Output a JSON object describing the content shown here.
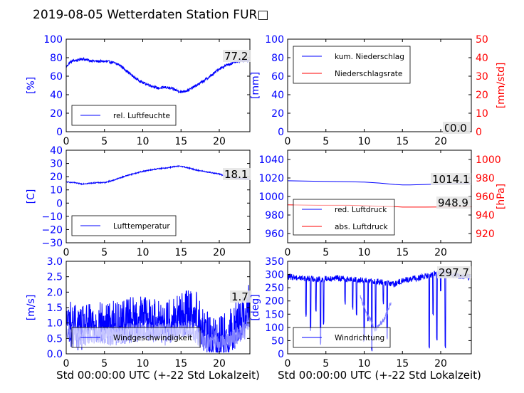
{
  "title": "2019-08-05 Wetterdaten Station FUR□",
  "colors": {
    "blue": "#0000ff",
    "red": "#ff0000",
    "light_blue": "#8080ff",
    "axes": "#000000"
  },
  "chart_data": [
    {
      "type": "line",
      "ylabel": "[%]",
      "xlim": [
        0,
        24
      ],
      "ylim": [
        0,
        100
      ],
      "xticks": [
        "0",
        "5",
        "10",
        "15",
        "20"
      ],
      "yticks": [
        "0",
        "20",
        "40",
        "60",
        "80",
        "100"
      ],
      "legend": {
        "placement": "bottom-left",
        "entries": [
          "rel. Luftfeuchte"
        ]
      },
      "last_value_label": "77.2",
      "series": [
        {
          "name": "rel. Luftfeuchte",
          "color": "#0000ff",
          "noise": 1.5,
          "x": [
            0,
            0.5,
            1,
            1.5,
            2,
            3,
            4,
            5,
            6,
            7,
            8,
            9,
            10,
            11,
            12,
            13,
            14,
            15,
            16,
            17,
            18,
            19,
            20,
            21,
            22,
            23,
            24
          ],
          "y": [
            70,
            75,
            77,
            77,
            79,
            77,
            76,
            76,
            75,
            72,
            65,
            58,
            53,
            50,
            47,
            48,
            46,
            43,
            45,
            50,
            55,
            61,
            68,
            72,
            75,
            77,
            77.2
          ]
        }
      ]
    },
    {
      "type": "line",
      "ylabel": "[mm]",
      "ylabel_right": "[mm/std]",
      "xlim": [
        0,
        24
      ],
      "ylim": [
        0,
        100
      ],
      "ylim_right": [
        0,
        50
      ],
      "xticks": [
        "0",
        "5",
        "10",
        "15",
        "20"
      ],
      "yticks": [
        "0",
        "20",
        "40",
        "60",
        "80",
        "100"
      ],
      "yticks_right": [
        "0",
        "10",
        "20",
        "30",
        "40",
        "50"
      ],
      "legend": {
        "placement": "top-left",
        "entries": [
          "kum. Niederschlag",
          "Niederschlagsrate"
        ]
      },
      "last_value_label": "0.0",
      "last_value_label_right": "0.0",
      "series": [
        {
          "name": "kum. Niederschlag",
          "color": "#0000ff",
          "x": [
            0,
            24
          ],
          "y": [
            0,
            0
          ]
        },
        {
          "name": "Niederschlagsrate",
          "color": "#ff0000",
          "x": [
            0,
            24
          ],
          "y": [
            0,
            0
          ],
          "axis": "right"
        }
      ]
    },
    {
      "type": "line",
      "ylabel": "[C]",
      "xlim": [
        0,
        24
      ],
      "ylim": [
        -30,
        40
      ],
      "xticks": [
        "0",
        "5",
        "10",
        "15",
        "20"
      ],
      "yticks": [
        "−30",
        "−20",
        "−10",
        "0",
        "10",
        "20",
        "30",
        "40"
      ],
      "legend": {
        "placement": "bottom-left",
        "entries": [
          "Lufttemperatur"
        ]
      },
      "last_value_label": "18.1",
      "series": [
        {
          "name": "Lufttemperatur",
          "color": "#0000ff",
          "noise": 0.4,
          "x": [
            0,
            1,
            2,
            3,
            4,
            5,
            6,
            7,
            8,
            9,
            10,
            11,
            12,
            13,
            14,
            15,
            16,
            17,
            18,
            19,
            20,
            21,
            22,
            23,
            24
          ],
          "y": [
            16,
            15.5,
            14.5,
            15,
            15.5,
            15.5,
            17,
            19,
            21,
            22.5,
            24,
            25,
            26,
            26.5,
            27.5,
            28,
            26.5,
            25,
            24,
            23,
            22,
            20,
            19,
            18.5,
            18.1
          ]
        }
      ]
    },
    {
      "type": "line",
      "ylabel_right": "[hPa]",
      "xlim": [
        0,
        24
      ],
      "ylim": [
        950,
        1050
      ],
      "ylim_right": [
        910,
        1010
      ],
      "xticks": [
        "0",
        "5",
        "10",
        "15",
        "20"
      ],
      "yticks": [
        "960",
        "980",
        "1000",
        "1020",
        "1040"
      ],
      "yticks_right": [
        "920",
        "940",
        "960",
        "980",
        "1000"
      ],
      "legend": {
        "placement": "bottom-left",
        "entries": [
          "red. Luftdruck",
          "abs. Luftdruck"
        ]
      },
      "last_value_label": "1014.1",
      "last_value_label_right": "948.9",
      "series": [
        {
          "name": "red. Luftdruck",
          "color": "#0000ff",
          "x": [
            0,
            4,
            8,
            10,
            12,
            14,
            15,
            16,
            18,
            20,
            22,
            24
          ],
          "y": [
            1017,
            1016.5,
            1016,
            1015.5,
            1014.5,
            1013,
            1012.5,
            1012.5,
            1013,
            1013.5,
            1014,
            1014.1
          ]
        },
        {
          "name": "abs. Luftdruck",
          "color": "#ff0000",
          "axis": "right",
          "x": [
            0,
            4,
            8,
            10,
            12,
            14,
            15,
            16,
            18,
            20,
            22,
            24
          ],
          "y": [
            951,
            950.5,
            950.5,
            950,
            949.5,
            949,
            948.5,
            948.5,
            948.5,
            948.7,
            948.8,
            948.9
          ]
        }
      ]
    },
    {
      "type": "line",
      "ylabel": "[m/s]",
      "xlabel": "Std 00:00:00 UTC (+-22 Std Lokalzeit)",
      "xlim": [
        0,
        24
      ],
      "ylim": [
        0,
        3
      ],
      "xticks": [
        "0",
        "5",
        "10",
        "15",
        "20"
      ],
      "yticks": [
        "0.0",
        "0.5",
        "1.0",
        "1.5",
        "2.0",
        "2.5",
        "3.0"
      ],
      "legend": {
        "placement": "bottom-left",
        "entries": [
          "Windgeschwindigkeit"
        ]
      },
      "last_value_label": "1.7",
      "series": [
        {
          "name": "Windgeschwindigkeit",
          "color": "#0000ff",
          "noise": 0.75,
          "clamp": [
            0.05,
            2.9
          ],
          "x": [
            0,
            1,
            2,
            3,
            4,
            5,
            6,
            7,
            8,
            9,
            10,
            11,
            12,
            13,
            14,
            15,
            16,
            17,
            18,
            19,
            20,
            21,
            22,
            23,
            24
          ],
          "y": [
            1.1,
            0.9,
            0.8,
            0.9,
            1.0,
            0.9,
            1.0,
            1.0,
            1.1,
            1.1,
            1.2,
            1.1,
            1.1,
            1.0,
            1.1,
            1.2,
            1.4,
            1.3,
            0.7,
            0.5,
            0.5,
            0.6,
            0.9,
            1.2,
            1.7
          ]
        },
        {
          "name": "Windgeschwindigkeit (Mittel)",
          "color": "#8080ff",
          "noise": 0.3,
          "clamp": [
            0.05,
            2.9
          ],
          "x": [
            0,
            2,
            4,
            6,
            8,
            10,
            12,
            14,
            16,
            18,
            20,
            22,
            24
          ],
          "y": [
            0.8,
            0.6,
            0.6,
            0.6,
            0.7,
            0.7,
            0.7,
            0.7,
            0.8,
            0.4,
            0.3,
            0.5,
            0.9
          ]
        }
      ]
    },
    {
      "type": "line",
      "ylabel": "[deg]",
      "xlabel": "Std 00:00:00 UTC (+-22 Std Lokalzeit)",
      "xlim": [
        0,
        24
      ],
      "ylim": [
        0,
        360
      ],
      "xticks": [
        "0",
        "5",
        "10",
        "15",
        "20"
      ],
      "yticks": [
        "0",
        "50",
        "100",
        "150",
        "200",
        "250",
        "300",
        "350"
      ],
      "legend": {
        "placement": "bottom-left",
        "entries": [
          "Windrichtung"
        ]
      },
      "last_value_label": "297.7",
      "series": [
        {
          "name": "Windrichtung",
          "color": "#0000ff",
          "noise": 12,
          "clamp": [
            5,
            355
          ],
          "spikes": [
            [
              2.4,
              150
            ],
            [
              3.0,
              100
            ],
            [
              3.7,
              170
            ],
            [
              4.3,
              40
            ],
            [
              4.7,
              120
            ],
            [
              7.5,
              200
            ],
            [
              8.5,
              180
            ],
            [
              9.0,
              150
            ],
            [
              10.0,
              60
            ],
            [
              10.5,
              120
            ],
            [
              11.0,
              20
            ],
            [
              11.5,
              100
            ],
            [
              12.5,
              200
            ],
            [
              13.0,
              60
            ],
            [
              18.5,
              20
            ],
            [
              19.0,
              150
            ],
            [
              19.5,
              60
            ],
            [
              20.0,
              250
            ],
            [
              20.6,
              30
            ]
          ],
          "x": [
            0,
            2,
            4,
            6,
            8,
            10,
            12,
            14,
            15,
            16,
            18,
            19,
            20,
            21,
            22,
            23,
            24
          ],
          "y": [
            300,
            295,
            290,
            295,
            290,
            285,
            280,
            270,
            285,
            290,
            300,
            310,
            320,
            315,
            305,
            300,
            297.7
          ]
        },
        {
          "name": "Windrichtung (Mittel)",
          "color": "#8080ff",
          "noise": 10,
          "clamp": [
            5,
            355
          ],
          "x": [
            9.5,
            10,
            10.5,
            11,
            11.5,
            12,
            12.5,
            13,
            13.5
          ],
          "y": [
            220,
            180,
            150,
            120,
            90,
            110,
            130,
            160,
            200
          ]
        }
      ]
    }
  ]
}
